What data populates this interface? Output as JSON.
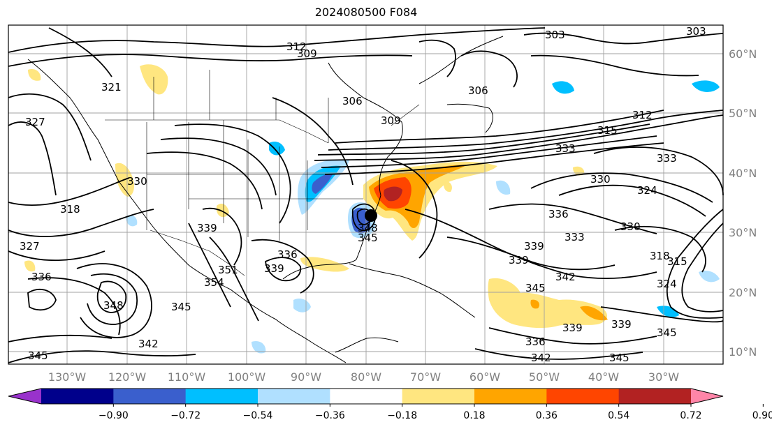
{
  "title": "2024080500 F084",
  "lon_labels": [
    "130°W",
    "120°W",
    "110°W",
    "100°W",
    "90°W",
    "80°W",
    "70°W",
    "60°W",
    "50°W",
    "40°W",
    "30°W"
  ],
  "lat_labels": [
    "60°N",
    "50°N",
    "40°N",
    "30°N",
    "20°N",
    "10°N"
  ],
  "contour_labels": [
    "303",
    "312",
    "309",
    "321",
    "327",
    "318",
    "330",
    "336",
    "339",
    "342",
    "345",
    "348",
    "351",
    "354",
    "306",
    "315",
    "324",
    "333"
  ],
  "colorbar": {
    "ticks": [
      "−0.90",
      "−0.72",
      "−0.54",
      "−0.36",
      "−0.18",
      "0.18",
      "0.36",
      "0.54",
      "0.72",
      "0.90"
    ],
    "colors": [
      "#9932cc",
      "#00008b",
      "#3a5fcd",
      "#00bfff",
      "#b0e0ff",
      "#ffffff",
      "#ffe680",
      "#ffa500",
      "#ff4500",
      "#b22222",
      "#ff85a8"
    ]
  }
}
